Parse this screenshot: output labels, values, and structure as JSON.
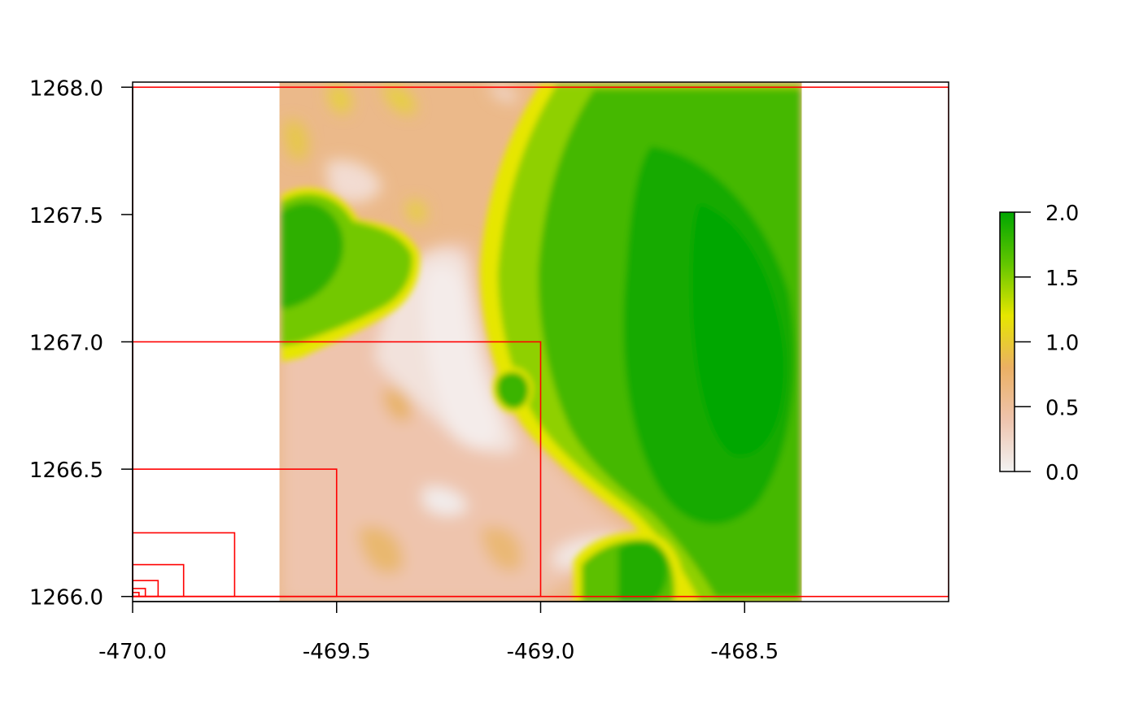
{
  "chart_data": {
    "type": "heatmap",
    "title": "",
    "xlabel": "",
    "ylabel": "",
    "xlim": [
      -470.0,
      -468.0
    ],
    "ylim": [
      1265.98,
      1268.02
    ],
    "x_ticks": [
      -470.0,
      -469.5,
      -469.0,
      -468.5
    ],
    "x_tick_labels": [
      "-470.0",
      "-469.5",
      "-469.0",
      "-468.5"
    ],
    "y_ticks": [
      1266.0,
      1266.5,
      1267.0,
      1267.5,
      1268.0
    ],
    "y_tick_labels": [
      "1266.0",
      "1266.5",
      "1267.0",
      "1267.5",
      "1268.0"
    ],
    "raster_extent": {
      "xmin": -469.64,
      "xmax": -468.36,
      "ymin": 1265.98,
      "ymax": 1268.02
    },
    "colorbar": {
      "range": [
        0.0,
        2.0
      ],
      "ticks": [
        0.0,
        0.5,
        1.0,
        1.5,
        2.0
      ],
      "tick_labels": [
        "0.0",
        "0.5",
        "1.0",
        "1.5",
        "2.0"
      ],
      "colors": [
        "#f2f2f2",
        "#eec4ad",
        "#ebb064",
        "#e6e600",
        "#63c600",
        "#00a600"
      ]
    },
    "rectangles": {
      "color": "#ff0000",
      "items": [
        {
          "xmin": -470.0,
          "xmax": -468.0,
          "ymin": 1266.0,
          "ymax": 1268.0
        },
        {
          "xmin": -470.0,
          "xmax": -469.0,
          "ymin": 1266.0,
          "ymax": 1267.0
        },
        {
          "xmin": -470.0,
          "xmax": -469.5,
          "ymin": 1266.0,
          "ymax": 1266.5
        },
        {
          "xmin": -470.0,
          "xmax": -469.75,
          "ymin": 1266.0,
          "ymax": 1266.25
        },
        {
          "xmin": -470.0,
          "xmax": -469.875,
          "ymin": 1266.0,
          "ymax": 1266.125
        },
        {
          "xmin": -470.0,
          "xmax": -469.9375,
          "ymin": 1266.0,
          "ymax": 1266.0625
        },
        {
          "xmin": -470.0,
          "xmax": -469.96875,
          "ymin": 1266.0,
          "ymax": 1266.03125
        },
        {
          "xmin": -470.0,
          "xmax": -469.984375,
          "ymin": 1266.0,
          "ymax": 1266.015625
        }
      ]
    },
    "grid": false,
    "legend": "right"
  }
}
